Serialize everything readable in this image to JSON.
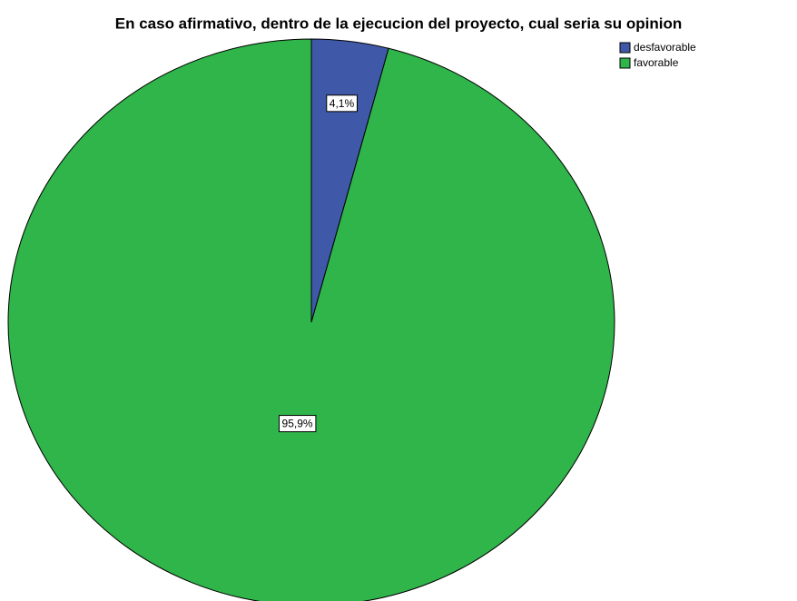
{
  "chart_data": {
    "type": "pie",
    "title": "En caso afirmativo, dentro de la ejecucion del proyecto, cual seria su opinion",
    "categories": [
      "desfavorable",
      "favorable"
    ],
    "values": [
      4.1,
      95.9
    ],
    "value_labels": [
      "4,1%",
      "95,9%"
    ],
    "colors": [
      "#3f58a8",
      "#2fb54a"
    ],
    "legend": "upper right"
  }
}
